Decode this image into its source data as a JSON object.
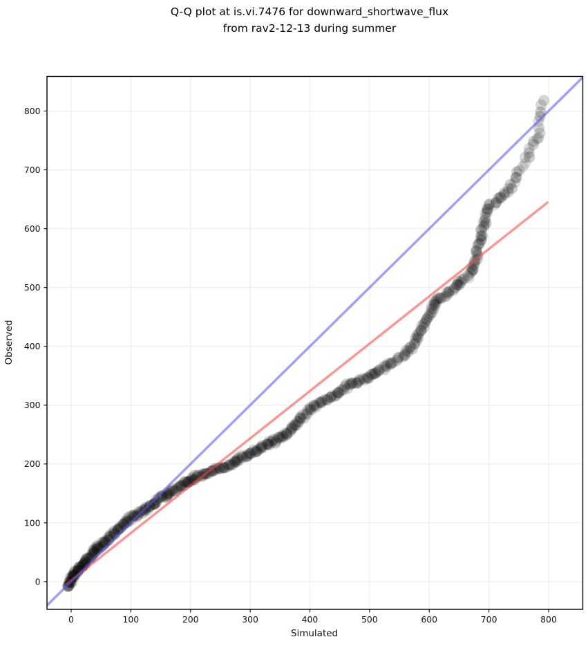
{
  "title": {
    "line1": "Q-Q plot at is.vi.7476 for downward_shortwave_flux",
    "line2": "from rav2-12-13 during summer"
  },
  "axes": {
    "xlabel": "Simulated",
    "ylabel": "Observed",
    "x_range": [
      -40.5,
      857.3
    ],
    "y_range": [
      -47.1,
      858.8
    ],
    "x_ticks": [
      0,
      100,
      200,
      300,
      400,
      500,
      600,
      700,
      800
    ],
    "x_tick_labels": [
      "0",
      "100",
      "200",
      "300",
      "400",
      "500",
      "600",
      "700",
      "800"
    ],
    "y_ticks": [
      0,
      100,
      200,
      300,
      400,
      500,
      600,
      700,
      800
    ],
    "y_tick_labels": [
      "0",
      "100",
      "200",
      "300",
      "400",
      "500",
      "600",
      "700",
      "800"
    ]
  },
  "colors": {
    "grid": "#ececec",
    "spine": "#000000",
    "identity_line": "rgba(82,82,235,0.55)",
    "fit_line": "rgba(244,66,66,0.55)",
    "marker": "#000000"
  },
  "chart_data": {
    "type": "scatter",
    "title": "Q-Q plot at is.vi.7476 for downward_shortwave_flux from rav2-12-13 during summer",
    "xlabel": "Simulated",
    "ylabel": "Observed",
    "xlim": [
      -40.5,
      857.3
    ],
    "ylim": [
      -47.1,
      858.8
    ],
    "grid": true,
    "legend": "none",
    "identity_line": {
      "x": [
        -40.5,
        857.3
      ],
      "y": [
        -40.5,
        857.3
      ],
      "color": "rgba(82,82,235,0.55)",
      "width": 3.5
    },
    "fit_line": {
      "x": [
        -7,
        798
      ],
      "y": [
        -3.6,
        644.4
      ],
      "color": "rgba(244,66,66,0.55)",
      "width": 3.5
    },
    "marker": {
      "radius": 8.1,
      "alpha": 0.16,
      "color": "#000000",
      "jitter": 6
    },
    "qq_curve": [
      [
        -4,
        -10,
        1.2
      ],
      [
        0,
        3,
        1.2
      ],
      [
        4,
        10,
        1.2
      ],
      [
        10,
        18,
        1.4
      ],
      [
        20,
        30,
        1.4
      ],
      [
        30,
        41,
        1.6
      ],
      [
        40,
        52,
        1.6
      ],
      [
        50,
        62,
        1.6
      ],
      [
        60,
        71,
        1.8
      ],
      [
        70,
        81,
        1.8
      ],
      [
        80,
        91,
        1.8
      ],
      [
        90,
        100,
        1.8
      ],
      [
        100,
        108,
        1.8
      ],
      [
        110,
        114,
        1.8
      ],
      [
        120,
        120,
        2.0
      ],
      [
        132,
        127,
        2.0
      ],
      [
        150,
        142,
        2.0
      ],
      [
        170,
        154,
        2.0
      ],
      [
        189,
        166,
        2.0
      ],
      [
        208,
        178,
        2.2
      ],
      [
        228,
        186,
        2.2
      ],
      [
        247,
        192,
        2.2
      ],
      [
        266,
        199,
        2.2
      ],
      [
        286,
        211,
        2.2
      ],
      [
        305,
        221,
        2.2
      ],
      [
        324,
        231,
        2.2
      ],
      [
        344,
        240,
        2.2
      ],
      [
        363,
        254,
        2.4
      ],
      [
        375,
        266,
        2.4
      ],
      [
        385,
        277,
        2.6
      ],
      [
        395,
        287,
        2.6
      ],
      [
        405,
        297,
        2.8
      ],
      [
        425,
        307,
        2.8
      ],
      [
        444,
        319,
        2.8
      ],
      [
        463,
        333,
        2.8
      ],
      [
        483,
        342,
        2.8
      ],
      [
        502,
        350,
        2.8
      ],
      [
        521,
        362,
        3.0
      ],
      [
        540,
        374,
        3.4
      ],
      [
        559,
        387,
        3.6
      ],
      [
        571,
        399,
        3.6
      ],
      [
        582,
        417,
        3.6
      ],
      [
        589,
        431,
        3.4
      ],
      [
        597,
        448,
        3.2
      ],
      [
        605,
        464,
        3.2
      ],
      [
        612,
        477,
        3.0
      ],
      [
        623,
        485,
        3.0
      ],
      [
        635,
        494,
        3.0
      ],
      [
        647,
        504,
        3.0
      ],
      [
        658,
        514,
        3.2
      ],
      [
        664,
        518,
        3.2
      ],
      [
        668,
        524,
        3.2
      ],
      [
        672,
        532,
        3.2
      ],
      [
        676,
        541,
        3.2
      ],
      [
        679,
        550,
        3.2
      ],
      [
        681,
        565,
        3.4
      ],
      [
        683,
        573,
        3.4
      ],
      [
        686,
        582,
        3.4
      ],
      [
        688,
        592,
        3.4
      ],
      [
        690,
        602,
        3.4
      ],
      [
        693,
        609,
        3.4
      ],
      [
        695,
        620,
        3.4
      ],
      [
        697,
        629,
        3.6
      ],
      [
        700,
        635,
        3.6
      ],
      [
        704,
        641,
        3.8
      ],
      [
        710,
        645,
        3.8
      ],
      [
        716,
        649,
        4.0
      ],
      [
        724,
        658,
        4.2
      ],
      [
        730,
        661,
        4.5
      ],
      [
        736,
        670,
        5.0
      ],
      [
        744,
        684,
        5.5
      ],
      [
        749,
        694,
        6.0
      ],
      [
        755,
        705,
        6.5
      ],
      [
        762,
        719,
        7.0
      ],
      [
        768,
        729,
        7.0
      ],
      [
        772,
        740,
        7.5
      ],
      [
        778,
        750,
        8.0
      ],
      [
        783,
        764,
        8.5
      ],
      [
        785,
        781,
        9.0
      ],
      [
        787,
        799,
        10
      ],
      [
        790,
        808,
        10
      ],
      [
        792,
        818,
        0
      ]
    ]
  }
}
